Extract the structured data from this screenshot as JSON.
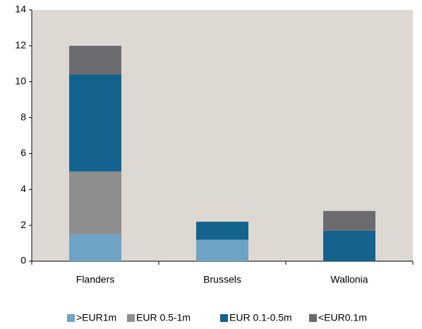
{
  "chart_data": {
    "type": "stacked_bar",
    "categories": [
      "Flanders",
      "Brussels",
      "Wallonia"
    ],
    "series": [
      {
        "name": ">EUR1m",
        "color": "#6fa3c5",
        "values": [
          1.5,
          1.2,
          0
        ]
      },
      {
        "name": "EUR 0.5-1m",
        "color": "#8e8e90",
        "values": [
          3.5,
          0,
          0
        ]
      },
      {
        "name": "EUR 0.1-0.5m",
        "color": "#14628e",
        "values": [
          5.4,
          1.0,
          1.7
        ]
      },
      {
        "name": "<EUR0.1m",
        "color": "#6c6c70",
        "values": [
          1.6,
          0,
          1.1
        ]
      }
    ],
    "ylim": [
      0,
      14
    ],
    "yticks": [
      0,
      2,
      4,
      6,
      8,
      10,
      12,
      14
    ],
    "grid": false,
    "legend": "bottom"
  }
}
